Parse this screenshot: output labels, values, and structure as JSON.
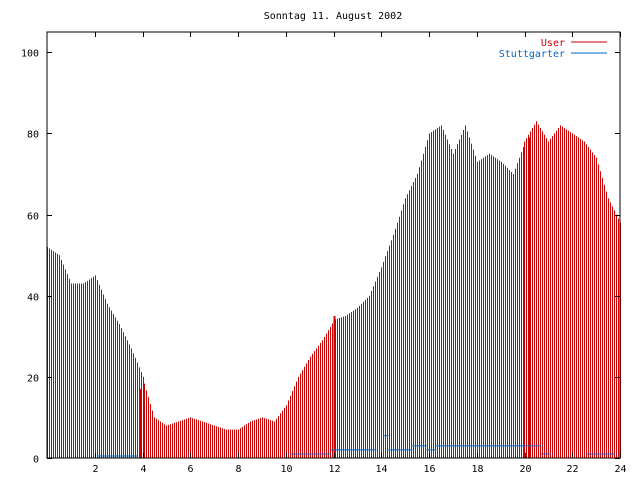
{
  "chart_data": {
    "type": "bar",
    "title": "Sonntag 11. August 2002",
    "xlabel": "",
    "ylabel": "",
    "xlim": [
      0,
      24
    ],
    "ylim": [
      0,
      105
    ],
    "x_ticks": [
      2,
      4,
      6,
      8,
      10,
      12,
      14,
      16,
      18,
      20,
      22,
      24
    ],
    "x_tick_labels": [
      "2",
      "4",
      "6",
      "8",
      "10",
      "12",
      "14",
      "16",
      "18",
      "20",
      "22",
      "24"
    ],
    "y_ticks": [
      0,
      20,
      40,
      60,
      80,
      100
    ],
    "y_tick_labels": [
      "0",
      "20",
      "40",
      "60",
      "80",
      "100"
    ],
    "grid": false,
    "legend_position": "top-right",
    "series": [
      {
        "name": "User",
        "color": "#cc0000",
        "style": "bars",
        "x": [
          0,
          0.5,
          1,
          1.5,
          2,
          2.5,
          3,
          3.5,
          4,
          4.5,
          5,
          5.5,
          6,
          6.5,
          7,
          7.5,
          8,
          8.5,
          9,
          9.5,
          10,
          10.5,
          11,
          11.5,
          12,
          12.5,
          13,
          13.5,
          14,
          14.5,
          15,
          15.5,
          16,
          16.5,
          17,
          17.5,
          18,
          18.5,
          19,
          19.5,
          20,
          20.5,
          21,
          21.5,
          22,
          22.5,
          23,
          23.5,
          24
        ],
        "y": [
          52,
          50,
          43,
          43,
          45,
          38,
          33,
          27,
          20,
          10,
          8,
          9,
          10,
          9,
          8,
          7,
          7,
          9,
          10,
          9,
          13,
          20,
          25,
          29,
          34,
          35,
          37,
          40,
          47,
          55,
          64,
          70,
          80,
          82,
          75,
          82,
          73,
          75,
          73,
          70,
          78,
          83,
          78,
          82,
          80,
          78,
          74,
          64,
          58
        ],
        "spikes": [
          {
            "x": 3.9,
            "y": 17
          },
          {
            "x": 12.0,
            "y": 35
          },
          {
            "x": 20.2,
            "y": 79
          }
        ]
      },
      {
        "name": "Stuttgarter",
        "color": "#0066cc",
        "style": "steps",
        "segments": [
          {
            "x0": 2.1,
            "x1": 3.8,
            "y": 0.5
          },
          {
            "x0": 10.2,
            "x1": 11.9,
            "y": 1
          },
          {
            "x0": 11.9,
            "x1": 13.8,
            "y": 2
          },
          {
            "x0": 14.1,
            "x1": 14.3,
            "y": 5.5
          },
          {
            "x0": 14.3,
            "x1": 15.3,
            "y": 2
          },
          {
            "x0": 15.3,
            "x1": 15.9,
            "y": 3
          },
          {
            "x0": 15.9,
            "x1": 16.3,
            "y": 2
          },
          {
            "x0": 16.3,
            "x1": 20.7,
            "y": 3
          },
          {
            "x0": 20.7,
            "x1": 21.1,
            "y": 1
          },
          {
            "x0": 22.6,
            "x1": 23.8,
            "y": 1
          }
        ]
      }
    ]
  }
}
